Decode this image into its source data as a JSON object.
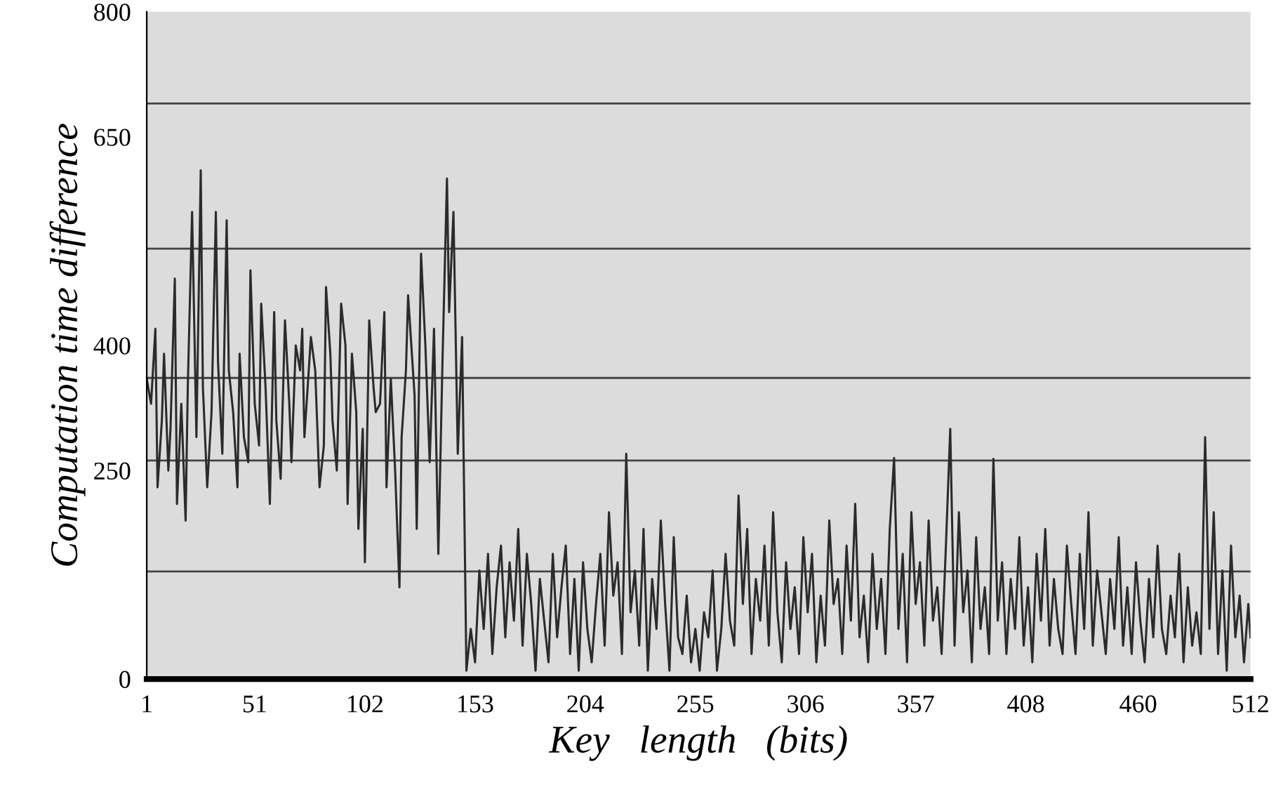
{
  "chart_data": {
    "type": "line",
    "xlabel": "Key   length   (bits)",
    "ylabel": "Computation time difference",
    "xlim": [
      1,
      512
    ],
    "xticks": [
      1,
      51,
      102,
      153,
      204,
      255,
      306,
      357,
      408,
      460,
      512
    ],
    "ylim": [
      0,
      800
    ],
    "yticks": [
      0,
      250,
      400,
      650,
      800
    ],
    "grid": false,
    "legend": false,
    "marker": "none",
    "line_style": "solid",
    "ref_lines": [
      {
        "axis": "y",
        "value": 129,
        "color": "#444444"
      },
      {
        "axis": "y",
        "value": 262,
        "color": "#444444"
      },
      {
        "axis": "y",
        "value": 361,
        "color": "#444444"
      },
      {
        "axis": "y",
        "value": 516,
        "color": "#444444"
      },
      {
        "axis": "y",
        "value": 690,
        "color": "#444444"
      }
    ],
    "series": [
      {
        "color": "#2b2b2b",
        "x": [
          1,
          3,
          5,
          6,
          8,
          9,
          11,
          12,
          14,
          15,
          17,
          19,
          20,
          22,
          24,
          26,
          27,
          29,
          31,
          33,
          34,
          36,
          38,
          39,
          41,
          43,
          44,
          46,
          48,
          49,
          51,
          53,
          54,
          56,
          58,
          60,
          61,
          63,
          65,
          67,
          68,
          70,
          72,
          73,
          74,
          77,
          79,
          81,
          83,
          84,
          86,
          87,
          89,
          91,
          93,
          94,
          96,
          98,
          99,
          101,
          102,
          104,
          106,
          107,
          109,
          111,
          112,
          114,
          116,
          118,
          119,
          121,
          122,
          125,
          126,
          128,
          130,
          132,
          134,
          136,
          138,
          140,
          141,
          143,
          145,
          147,
          149,
          151,
          153,
          155,
          157,
          159,
          161,
          163,
          165,
          167,
          169,
          171,
          173,
          175,
          177,
          179,
          181,
          183,
          185,
          187,
          189,
          191,
          193,
          195,
          197,
          199,
          201,
          203,
          205,
          207,
          209,
          211,
          213,
          215,
          217,
          219,
          221,
          223,
          225,
          227,
          229,
          231,
          233,
          235,
          237,
          239,
          241,
          243,
          245,
          247,
          249,
          251,
          253,
          255,
          257,
          259,
          261,
          263,
          265,
          267,
          269,
          271,
          273,
          275,
          277,
          279,
          281,
          283,
          285,
          287,
          289,
          291,
          293,
          295,
          297,
          299,
          301,
          303,
          305,
          307,
          309,
          311,
          313,
          315,
          317,
          319,
          321,
          323,
          325,
          327,
          329,
          331,
          333,
          335,
          337,
          339,
          341,
          343,
          345,
          347,
          349,
          351,
          353,
          355,
          357,
          359,
          361,
          363,
          365,
          367,
          369,
          371,
          373,
          375,
          377,
          379,
          381,
          383,
          385,
          387,
          389,
          391,
          393,
          395,
          397,
          399,
          401,
          403,
          405,
          407,
          409,
          411,
          413,
          415,
          417,
          419,
          421,
          423,
          425,
          427,
          429,
          431,
          433,
          435,
          437,
          439,
          441,
          443,
          445,
          447,
          449,
          451,
          453,
          455,
          457,
          459,
          461,
          463,
          465,
          467,
          469,
          471,
          473,
          475,
          477,
          479,
          481,
          483,
          485,
          487,
          489,
          491,
          493,
          495,
          497,
          499,
          501,
          503,
          505,
          507,
          509,
          511,
          512
        ],
        "values": [
          360,
          330,
          420,
          230,
          310,
          390,
          250,
          300,
          480,
          210,
          330,
          190,
          350,
          560,
          290,
          610,
          350,
          230,
          320,
          560,
          380,
          270,
          550,
          370,
          320,
          230,
          390,
          290,
          260,
          490,
          330,
          280,
          450,
          350,
          210,
          440,
          310,
          240,
          430,
          330,
          260,
          400,
          370,
          420,
          290,
          410,
          370,
          230,
          280,
          470,
          390,
          310,
          250,
          450,
          400,
          210,
          390,
          320,
          180,
          300,
          140,
          430,
          350,
          320,
          330,
          440,
          230,
          360,
          250,
          110,
          290,
          370,
          460,
          340,
          180,
          510,
          400,
          260,
          420,
          150,
          390,
          600,
          440,
          560,
          270,
          410,
          10,
          60,
          20,
          130,
          60,
          150,
          30,
          110,
          160,
          50,
          140,
          70,
          180,
          40,
          150,
          90,
          10,
          120,
          70,
          20,
          150,
          50,
          110,
          160,
          30,
          120,
          10,
          140,
          60,
          20,
          90,
          150,
          40,
          200,
          100,
          140,
          30,
          270,
          80,
          130,
          40,
          180,
          10,
          120,
          60,
          190,
          90,
          10,
          170,
          50,
          30,
          100,
          20,
          60,
          10,
          80,
          50,
          130,
          10,
          60,
          150,
          70,
          40,
          220,
          90,
          180,
          30,
          120,
          70,
          160,
          40,
          200,
          80,
          20,
          140,
          60,
          110,
          30,
          170,
          80,
          150,
          20,
          100,
          40,
          190,
          90,
          120,
          30,
          160,
          70,
          210,
          50,
          100,
          20,
          150,
          60,
          120,
          30,
          180,
          265,
          60,
          150,
          20,
          200,
          90,
          140,
          40,
          190,
          70,
          110,
          30,
          160,
          300,
          40,
          200,
          80,
          130,
          20,
          170,
          60,
          110,
          30,
          264,
          70,
          140,
          30,
          120,
          60,
          170,
          40,
          110,
          20,
          150,
          70,
          180,
          40,
          120,
          60,
          30,
          160,
          90,
          30,
          150,
          60,
          200,
          40,
          130,
          80,
          30,
          120,
          60,
          170,
          40,
          110,
          30,
          140,
          70,
          20,
          120,
          50,
          160,
          60,
          30,
          100,
          50,
          150,
          20,
          110,
          40,
          80,
          30,
          290,
          60,
          200,
          30,
          130,
          10,
          160,
          50,
          100,
          20,
          90,
          50
        ]
      }
    ]
  }
}
